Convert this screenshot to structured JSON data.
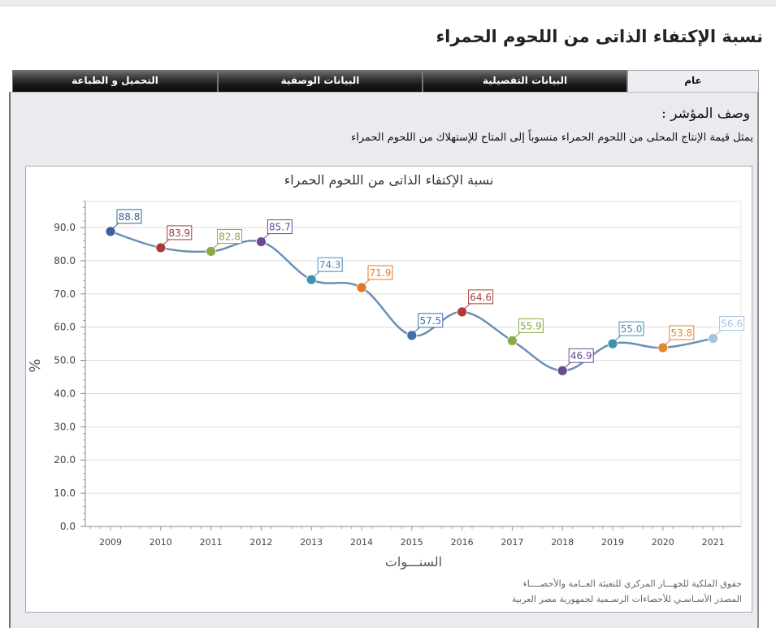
{
  "page": {
    "title": "نسبة الإكتفاء الذاتى من اللحوم الحمراء"
  },
  "tabs": [
    {
      "label": "عام",
      "active": true
    },
    {
      "label": "البيانات التفصيلية",
      "active": false
    },
    {
      "label": "البيانات الوصفية",
      "active": false
    },
    {
      "label": "التحميل و الطباعة",
      "active": false
    }
  ],
  "indicator": {
    "desc_title": "وصف المؤشر :",
    "desc_text": "يمثل قيمة الإنتاج المحلى من اللحوم الحمراء منسوباً إلى المتاح للإستهلاك من اللحوم الحمراء"
  },
  "footer": {
    "line1": "حقوق الملكية للجهـــاز المركزي للتعبئة العــامة والأحصــــاء",
    "line2": "المصدر الأسـاسـي للأحصاءات الرسـمية لجمهورية مصر العربية"
  },
  "colors": {
    "line": "#6b8fb5",
    "grid": "#dcdcdc",
    "axis": "#888888",
    "point_colors": [
      "#3d5f9a",
      "#a33b3b",
      "#8aa845",
      "#6a4a92",
      "#3d94b0",
      "#e07a2a",
      "#3d6fb0",
      "#b33a3a",
      "#8aa845",
      "#6a4a92",
      "#3d94b0",
      "#e0882e",
      "#a9c2dc"
    ]
  },
  "chart_data": {
    "type": "line",
    "title": "نسبة الإكتفاء الذاتى من اللحوم الحمراء",
    "xlabel": "السنـــوات",
    "ylabel": "%",
    "categories": [
      "2009",
      "2010",
      "2011",
      "2012",
      "2013",
      "2014",
      "2015",
      "2016",
      "2017",
      "2018",
      "2019",
      "2020",
      "2021"
    ],
    "series": [
      {
        "name": "نسبة الإكتفاء الذاتى من اللحوم الحمراء",
        "values": [
          88.8,
          83.9,
          82.8,
          85.7,
          74.3,
          71.9,
          57.5,
          64.6,
          55.9,
          46.9,
          55.0,
          53.8,
          56.6
        ]
      }
    ],
    "yticks": [
      "0.0",
      "10.0",
      "20.0",
      "30.0",
      "40.0",
      "50.0",
      "60.0",
      "70.0",
      "80.0",
      "90.0"
    ],
    "ylim": [
      0,
      98
    ],
    "grid": true,
    "legend": "none",
    "data_labels": true
  }
}
